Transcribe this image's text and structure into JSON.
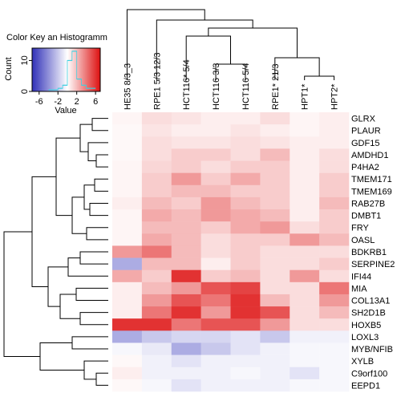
{
  "chart_data": {
    "type": "heatmap",
    "columns": [
      "HE35 8/3_3",
      "RPE1 5/3 12/3",
      "HCT116* 5/4",
      "HCT116 3/3",
      "HCT116 5/4",
      "RPE1* 21/3",
      "HPT1*",
      "HPT2*"
    ],
    "rows": [
      "GLRX",
      "PLAUR",
      "GDF15",
      "AMDHD1",
      "P4HA2",
      "TMEM171",
      "TMEM169",
      "RAB27B",
      "DMBT1",
      "FRY",
      "OASL",
      "BDKRB1",
      "SERPINE2",
      "IFI44",
      "MIA",
      "COL13A1",
      "SH2D1B",
      "HOXB5",
      "LOXL3",
      "MYB/NFIB",
      "XYLB",
      "C9orf100",
      "EEPD1"
    ],
    "values": [
      [
        0.3,
        1,
        0.8,
        0.5,
        0.5,
        1,
        0.3,
        0.5
      ],
      [
        0.2,
        0.8,
        0.5,
        0.5,
        0.8,
        0.5,
        0.3,
        0.5
      ],
      [
        0.2,
        1,
        0.8,
        0.8,
        1,
        0.8,
        0.5,
        0.5
      ],
      [
        0.2,
        1,
        1.5,
        1.5,
        1,
        2,
        0.5,
        1
      ],
      [
        0.3,
        1.2,
        1.5,
        1,
        1.5,
        1.5,
        0.5,
        1
      ],
      [
        0.3,
        1.5,
        3,
        1.5,
        2.5,
        1.5,
        0.5,
        1.5
      ],
      [
        0.3,
        1.5,
        2,
        2,
        1.5,
        1.5,
        0.5,
        1.5
      ],
      [
        0.5,
        2,
        1.5,
        3,
        2,
        1.5,
        0.5,
        2
      ],
      [
        0.3,
        2.5,
        2,
        3,
        2.5,
        2,
        0.5,
        1.5
      ],
      [
        0.3,
        2,
        2,
        1.5,
        2.5,
        3,
        1,
        1.5
      ],
      [
        0.3,
        2.5,
        2,
        1,
        1.5,
        1.5,
        3,
        2
      ],
      [
        3,
        4,
        2,
        1,
        1.5,
        1,
        1,
        1
      ],
      [
        -3,
        2,
        2,
        0.5,
        1.5,
        1,
        1,
        1.5
      ],
      [
        2.5,
        1.5,
        6,
        1.5,
        2,
        1,
        3,
        1
      ],
      [
        0.5,
        2,
        3,
        5,
        5.5,
        1,
        1,
        4
      ],
      [
        0.5,
        3,
        5,
        4,
        6,
        2,
        1,
        3
      ],
      [
        0.5,
        4,
        6,
        3,
        6,
        5,
        1,
        2
      ],
      [
        6,
        6,
        4,
        5,
        5,
        3,
        1,
        1
      ],
      [
        -3,
        -2,
        -1.5,
        -1.5,
        -1,
        -2,
        -0.5,
        -0.5
      ],
      [
        -0.3,
        -0.8,
        -3,
        -2,
        -1,
        -0.5,
        -0.3,
        -0.3
      ],
      [
        0.2,
        -0.5,
        -1,
        -0.5,
        -0.5,
        -0.5,
        -0.3,
        -0.3
      ],
      [
        0.5,
        -0.5,
        -0.5,
        -0.5,
        -0.3,
        -0.5,
        -1,
        -0.3
      ],
      [
        0.2,
        -0.3,
        -1,
        -0.5,
        -0.5,
        -0.5,
        -0.3,
        -0.3
      ]
    ],
    "colors": [
      "#3030b8",
      "#ffffff",
      "#dd1010"
    ],
    "key": {
      "title": "Color Key an Histogramm",
      "xlabel": "Value",
      "ylabel": "Count",
      "xlim": [
        -7.5,
        7
      ],
      "xticks": [
        -6,
        -2,
        2,
        6
      ],
      "ylim": [
        0,
        14
      ],
      "yticks": [
        0,
        10
      ],
      "bins": [
        -4,
        -3,
        -2,
        -1,
        0,
        1,
        2,
        3,
        4,
        5,
        6
      ],
      "counts": [
        0.5,
        0.5,
        1,
        2,
        10,
        13,
        4,
        2,
        1,
        1
      ],
      "hist_color": "#40d0e0"
    }
  }
}
